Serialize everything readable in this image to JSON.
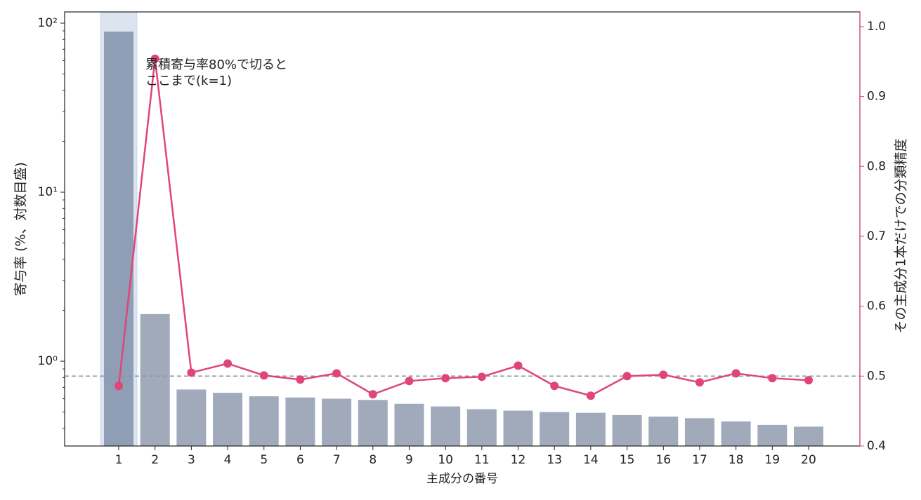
{
  "chart_data": {
    "type": "bar_line",
    "xlabel": "主成分の番号",
    "ylabel": "寄与率 (%、対数目盛)",
    "y2label": "その主成分1本だけでの分類精度",
    "annotation": [
      "累積寄与率80%で切ると",
      "ここまで(k=1)"
    ],
    "categories": [
      "1",
      "2",
      "3",
      "4",
      "5",
      "6",
      "7",
      "8",
      "9",
      "10",
      "11",
      "12",
      "13",
      "14",
      "15",
      "16",
      "17",
      "18",
      "19",
      "20"
    ],
    "highlight_category": "1",
    "highlight_color": "#dbe4ef",
    "series": [
      {
        "name": "寄与率",
        "type": "bar",
        "color": "#a0aabb",
        "highlight_bar_color": "#8f9db5",
        "values": [
          89.1,
          1.9,
          0.68,
          0.65,
          0.62,
          0.61,
          0.6,
          0.59,
          0.56,
          0.54,
          0.52,
          0.51,
          0.5,
          0.495,
          0.48,
          0.47,
          0.46,
          0.44,
          0.42,
          0.41
        ]
      },
      {
        "name": "分類精度",
        "type": "line",
        "axis": "y2",
        "color": "#e0457a",
        "values": [
          0.486,
          0.954,
          0.505,
          0.518,
          0.501,
          0.495,
          0.504,
          0.474,
          0.493,
          0.497,
          0.499,
          0.515,
          0.486,
          0.472,
          0.5,
          0.502,
          0.491,
          0.504,
          0.497,
          0.494
        ]
      }
    ],
    "hline": {
      "value": 0.5,
      "axis": "y2",
      "color": "#8c93a8"
    },
    "ylog": true,
    "ylim": [
      0.315,
      116.5
    ],
    "yticks": [
      {
        "value": 1,
        "label": "10⁰"
      },
      {
        "value": 10,
        "label": "10¹"
      },
      {
        "value": 100,
        "label": "10²"
      }
    ],
    "y2lim": [
      0.4,
      1.021
    ],
    "y2ticks": [
      0.4,
      0.5,
      0.6,
      0.7,
      0.8,
      0.9,
      1.0
    ],
    "y2color": "#e0457a"
  }
}
